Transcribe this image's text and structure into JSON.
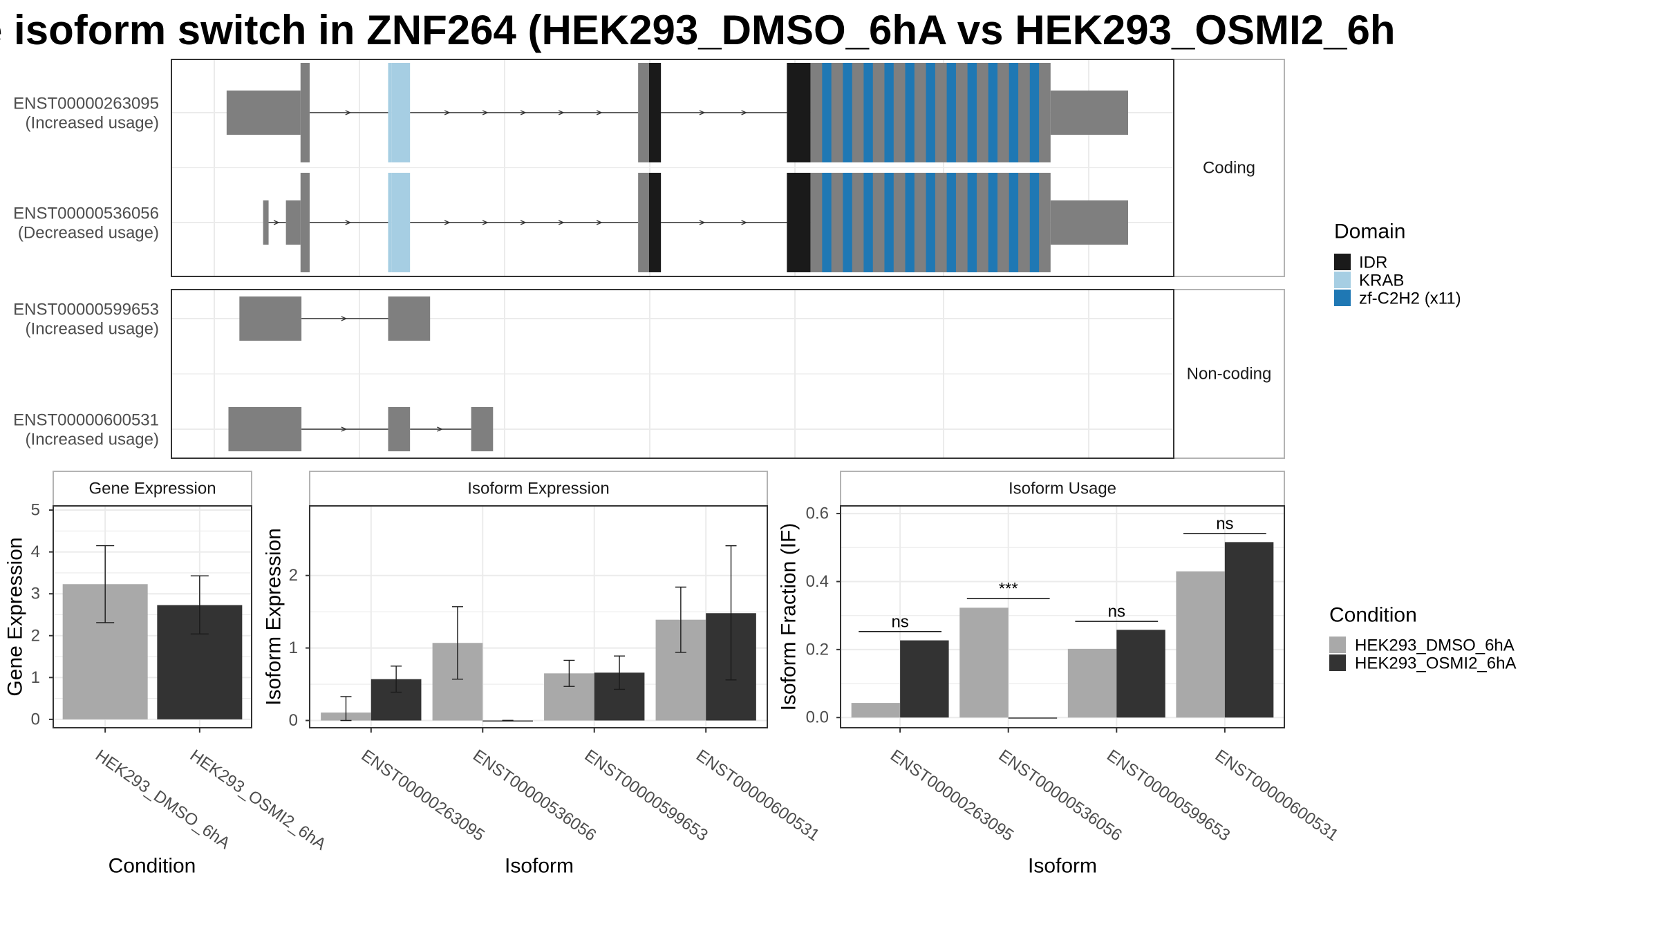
{
  "title": "e isoform switch in ZNF264 (HEK293_DMSO_6hA vs HEK293_OSMI2_6h",
  "colors": {
    "exon": "#7f7f7f",
    "IDR": "#1a1a1a",
    "KRAB": "#a6cee3",
    "zf-C2H2 (x11)": "#1f78b4",
    "HEK293_DMSO_6hA": "#a9a9a9",
    "HEK293_OSMI2_6hA": "#333333",
    "panel_border": "#333333",
    "strip_border": "#b3b3b3",
    "grid": "#ebebeb",
    "intron": "#333333"
  },
  "chart_data": [
    {
      "type": "gene-structure",
      "xlim": [
        0,
        1000
      ],
      "facets": [
        {
          "label": "Coding",
          "isoforms": [
            {
              "id": "ENST00000263095",
              "usage": "(Increased usage)",
              "exons": [
                {
                  "start": 12,
                  "end": 93,
                  "height": "utr"
                },
                {
                  "start": 93,
                  "end": 103,
                  "height": "cds"
                },
                {
                  "start": 189,
                  "end": 193,
                  "height": "cds",
                  "domain": "KRAB"
                },
                {
                  "start": 193,
                  "end": 213,
                  "height": "cds",
                  "domain": "KRAB"
                },
                {
                  "start": 463,
                  "end": 475,
                  "height": "cds"
                },
                {
                  "start": 475,
                  "end": 488,
                  "height": "cds",
                  "domain": "IDR"
                },
                {
                  "start": 626,
                  "end": 652,
                  "height": "cds",
                  "domain": "IDR"
                },
                {
                  "start": 652,
                  "end": 915,
                  "height": "cds",
                  "domain": "zf-C2H2 (x11)"
                },
                {
                  "start": 915,
                  "end": 1000,
                  "height": "utr"
                }
              ]
            },
            {
              "id": "ENST00000536056",
              "usage": "(Decreased usage)",
              "exons": [
                {
                  "start": 52,
                  "end": 58,
                  "height": "utr"
                },
                {
                  "start": 77,
                  "end": 93,
                  "height": "utr"
                },
                {
                  "start": 93,
                  "end": 103,
                  "height": "cds"
                },
                {
                  "start": 189,
                  "end": 193,
                  "height": "cds",
                  "domain": "KRAB"
                },
                {
                  "start": 193,
                  "end": 213,
                  "height": "cds",
                  "domain": "KRAB"
                },
                {
                  "start": 463,
                  "end": 475,
                  "height": "cds"
                },
                {
                  "start": 475,
                  "end": 488,
                  "height": "cds",
                  "domain": "IDR"
                },
                {
                  "start": 626,
                  "end": 652,
                  "height": "cds",
                  "domain": "IDR"
                },
                {
                  "start": 652,
                  "end": 915,
                  "height": "cds",
                  "domain": "zf-C2H2 (x11)"
                },
                {
                  "start": 915,
                  "end": 1000,
                  "height": "utr"
                }
              ]
            }
          ]
        },
        {
          "label": "Non-coding",
          "isoforms": [
            {
              "id": "ENST00000599653",
              "usage": "(Increased usage)",
              "exons": [
                {
                  "start": 26,
                  "end": 94,
                  "height": "utr"
                },
                {
                  "start": 189,
                  "end": 235,
                  "height": "utr"
                }
              ]
            },
            {
              "id": "ENST00000600531",
              "usage": "(Increased usage)",
              "exons": [
                {
                  "start": 14,
                  "end": 94,
                  "height": "utr"
                },
                {
                  "start": 189,
                  "end": 213,
                  "height": "utr"
                },
                {
                  "start": 280,
                  "end": 304,
                  "height": "utr"
                }
              ]
            }
          ]
        }
      ],
      "legend": {
        "title": "Domain",
        "items": [
          "IDR",
          "KRAB",
          "zf-C2H2 (x11)"
        ],
        "placement": "right"
      }
    },
    {
      "type": "bar",
      "panel_title": "Gene Expression",
      "xlabel": "Condition",
      "ylabel": "Gene Expression",
      "categories": [
        "HEK293_DMSO_6hA",
        "HEK293_OSMI2_6hA"
      ],
      "values": [
        3.23,
        2.73
      ],
      "error_low": [
        2.31,
        2.04
      ],
      "error_high": [
        4.15,
        3.43
      ],
      "ylim": [
        -0.2,
        5.1
      ],
      "yticks": [
        0,
        1,
        2,
        3,
        4,
        5
      ]
    },
    {
      "type": "bar",
      "panel_title": "Isoform Expression",
      "xlabel": "Isoform",
      "ylabel": "Isoform Expression",
      "categories": [
        "ENST00000263095",
        "ENST00000536056",
        "ENST00000599653",
        "ENST00000600531"
      ],
      "series": [
        {
          "name": "HEK293_DMSO_6hA",
          "values": [
            0.11,
            1.07,
            0.65,
            1.39
          ],
          "error_low": [
            0.0,
            0.57,
            0.47,
            0.94
          ],
          "error_high": [
            0.33,
            1.57,
            0.83,
            1.84
          ]
        },
        {
          "name": "HEK293_OSMI2_6hA",
          "values": [
            0.57,
            0.0,
            0.66,
            1.48
          ],
          "error_low": [
            0.39,
            0.0,
            0.43,
            0.56
          ],
          "error_high": [
            0.75,
            0.0,
            0.89,
            2.41
          ]
        }
      ],
      "ylim": [
        -0.1,
        2.96
      ],
      "yticks": [
        0,
        1,
        2
      ]
    },
    {
      "type": "bar",
      "panel_title": "Isoform Usage",
      "xlabel": "Isoform",
      "ylabel": "Isoform Fraction (IF)",
      "categories": [
        "ENST00000263095",
        "ENST00000536056",
        "ENST00000599653",
        "ENST00000600531"
      ],
      "series": [
        {
          "name": "HEK293_DMSO_6hA",
          "values": [
            0.043,
            0.323,
            0.202,
            0.43
          ]
        },
        {
          "name": "HEK293_OSMI2_6hA",
          "values": [
            0.227,
            0.0,
            0.258,
            0.516
          ]
        }
      ],
      "annotations": [
        {
          "category": "ENST00000263095",
          "text": "ns",
          "level": 0.253
        },
        {
          "category": "ENST00000536056",
          "text": "***",
          "level": 0.35
        },
        {
          "category": "ENST00000599653",
          "text": "ns",
          "level": 0.283
        },
        {
          "category": "ENST00000600531",
          "text": "ns",
          "level": 0.541
        }
      ],
      "ylim": [
        -0.03,
        0.6225
      ],
      "yticks": [
        0.0,
        0.2,
        0.4,
        0.6
      ]
    }
  ],
  "condition_legend": {
    "title": "Condition",
    "items": [
      "HEK293_DMSO_6hA",
      "HEK293_OSMI2_6hA"
    ]
  }
}
